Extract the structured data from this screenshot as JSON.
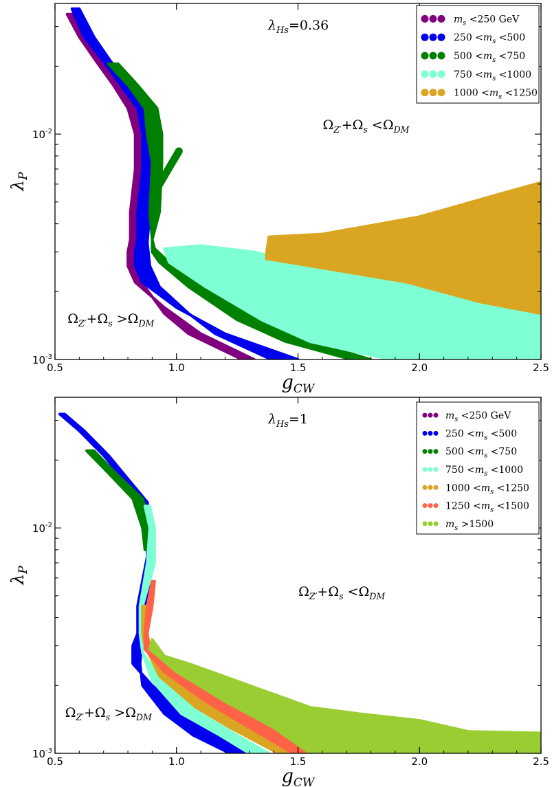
{
  "chart_data": [
    {
      "type": "area",
      "title": "λHs=0.36",
      "xlabel": "gCW",
      "ylabel": "λP",
      "xlim": [
        0.5,
        2.5
      ],
      "ylim": [
        0.001,
        0.038
      ],
      "y_scale": "log",
      "x_ticks": [
        "0.5",
        "1.0",
        "1.5",
        "2.0",
        "2.5"
      ],
      "y_ticks": [
        "10-3",
        "10-2"
      ],
      "legend_position": "top-right",
      "annotations": [
        {
          "text": "ΩZ′+Ωs <ΩDM",
          "x": 1.78,
          "y": 0.0105
        },
        {
          "text": "ΩZ′+Ωs >ΩDM",
          "x": 0.73,
          "y": 0.00145
        }
      ],
      "series": [
        {
          "name": "ms <250 GeV",
          "color": "#800080",
          "points": [
            [
              0.55,
              0.034
            ],
            [
              0.6,
              0.027
            ],
            [
              0.67,
              0.021
            ],
            [
              0.74,
              0.0165
            ],
            [
              0.8,
              0.013
            ],
            [
              0.83,
              0.01
            ],
            [
              0.83,
              0.007
            ],
            [
              0.81,
              0.0045
            ],
            [
              0.81,
              0.0034
            ],
            [
              0.8,
              0.003
            ],
            [
              0.8,
              0.0026
            ],
            [
              0.83,
              0.0022
            ],
            [
              0.95,
              0.0017
            ],
            [
              1.1,
              0.0013
            ],
            [
              1.32,
              0.001
            ],
            [
              1.27,
              0.001
            ],
            [
              1.05,
              0.0013
            ],
            [
              0.95,
              0.0016
            ],
            [
              0.87,
              0.0021
            ],
            [
              0.84,
              0.0026
            ],
            [
              0.84,
              0.0033
            ],
            [
              0.85,
              0.0045
            ],
            [
              0.87,
              0.007
            ],
            [
              0.87,
              0.01
            ],
            [
              0.84,
              0.013
            ],
            [
              0.78,
              0.0165
            ],
            [
              0.7,
              0.021
            ],
            [
              0.63,
              0.027
            ],
            [
              0.58,
              0.034
            ]
          ]
        },
        {
          "name": "250 <ms <500",
          "color": "#0000ee",
          "points": [
            [
              0.57,
              0.036
            ],
            [
              0.62,
              0.027
            ],
            [
              0.7,
              0.021
            ],
            [
              0.77,
              0.0165
            ],
            [
              0.84,
              0.013
            ],
            [
              0.86,
              0.01
            ],
            [
              0.86,
              0.007
            ],
            [
              0.84,
              0.0045
            ],
            [
              0.84,
              0.0034
            ],
            [
              0.83,
              0.003
            ],
            [
              0.83,
              0.0026
            ],
            [
              0.86,
              0.0022
            ],
            [
              1.0,
              0.0017
            ],
            [
              1.2,
              0.0013
            ],
            [
              1.5,
              0.001
            ],
            [
              1.39,
              0.001
            ],
            [
              1.16,
              0.0013
            ],
            [
              1.05,
              0.0016
            ],
            [
              0.93,
              0.0021
            ],
            [
              0.89,
              0.0026
            ],
            [
              0.88,
              0.0033
            ],
            [
              0.89,
              0.0045
            ],
            [
              0.91,
              0.007
            ],
            [
              0.91,
              0.01
            ],
            [
              0.88,
              0.013
            ],
            [
              0.81,
              0.0165
            ],
            [
              0.73,
              0.021
            ],
            [
              0.66,
              0.027
            ],
            [
              0.6,
              0.036
            ]
          ]
        },
        {
          "name": "500 <ms <750",
          "color": "#008000",
          "points": [
            [
              0.72,
              0.0205
            ],
            [
              0.8,
              0.0165
            ],
            [
              0.87,
              0.013
            ],
            [
              0.88,
              0.01
            ],
            [
              0.9,
              0.0075
            ],
            [
              0.89,
              0.0045
            ],
            [
              0.9,
              0.0034
            ],
            [
              0.91,
              0.0031
            ],
            [
              0.97,
              0.0027
            ],
            [
              1.12,
              0.0021
            ],
            [
              1.35,
              0.0015
            ],
            [
              1.55,
              0.0012
            ],
            [
              1.8,
              0.001
            ],
            [
              1.72,
              0.001
            ],
            [
              1.45,
              0.0012
            ],
            [
              1.25,
              0.0015
            ],
            [
              1.05,
              0.0021
            ],
            [
              0.93,
              0.0027
            ],
            [
              0.9,
              0.003
            ],
            [
              0.9,
              0.0034
            ],
            [
              0.93,
              0.0045
            ],
            [
              0.94,
              0.0075
            ],
            [
              0.94,
              0.01
            ],
            [
              0.92,
              0.013
            ],
            [
              0.84,
              0.0165
            ],
            [
              0.76,
              0.0205
            ]
          ]
        },
        {
          "name": "750 <ms <1000",
          "color": "#7fffd4",
          "points": [
            [
              0.95,
              0.0031
            ],
            [
              1.1,
              0.0032
            ],
            [
              1.32,
              0.003
            ],
            [
              1.55,
              0.0026
            ],
            [
              1.95,
              0.0022
            ],
            [
              2.25,
              0.0018
            ],
            [
              2.5,
              0.0016
            ],
            [
              2.5,
              0.001
            ],
            [
              1.88,
              0.001
            ],
            [
              1.55,
              0.0012
            ],
            [
              1.35,
              0.0015
            ],
            [
              1.12,
              0.0021
            ],
            [
              0.97,
              0.0027
            ]
          ]
        },
        {
          "name": "1000 <ms <1250",
          "color": "#daa520",
          "points": [
            [
              1.37,
              0.0029
            ],
            [
              1.38,
              0.0035
            ],
            [
              1.6,
              0.0036
            ],
            [
              2.0,
              0.0043
            ],
            [
              2.35,
              0.0055
            ],
            [
              2.5,
              0.0061
            ],
            [
              2.5,
              0.0016
            ],
            [
              2.25,
              0.0018
            ],
            [
              1.95,
              0.0022
            ],
            [
              1.55,
              0.0026
            ],
            [
              1.37,
              0.0028
            ]
          ]
        }
      ],
      "branch_lines": [
        {
          "color": "#008000",
          "points": [
            [
              1.01,
              0.0084
            ],
            [
              0.96,
              0.0068
            ],
            [
              0.91,
              0.0055
            ]
          ]
        }
      ]
    },
    {
      "type": "area",
      "title": "λHs=1",
      "xlabel": "gCW",
      "ylabel": "λP",
      "xlim": [
        0.5,
        2.5
      ],
      "ylim": [
        0.001,
        0.038
      ],
      "y_scale": "log",
      "x_ticks": [
        "0.5",
        "1.0",
        "1.5",
        "2.0",
        "2.5"
      ],
      "y_ticks": [
        "10-3",
        "10-2"
      ],
      "legend_position": "top-right",
      "annotations": [
        {
          "text": "ΩZ′+Ωs <ΩDM",
          "x": 1.68,
          "y": 0.005
        },
        {
          "text": "ΩZ′+Ωs >ΩDM",
          "x": 0.72,
          "y": 0.00145
        }
      ],
      "series": [
        {
          "name": "ms <250 GeV",
          "color": "#800080",
          "points": []
        },
        {
          "name": "250 <ms <500",
          "color": "#0000ee",
          "points": [
            [
              0.52,
              0.032
            ],
            [
              0.6,
              0.027
            ],
            [
              0.7,
              0.021
            ],
            [
              0.78,
              0.0165
            ],
            [
              0.86,
              0.013
            ],
            [
              0.88,
              0.01
            ],
            [
              0.88,
              0.0075
            ],
            [
              0.84,
              0.0045
            ],
            [
              0.84,
              0.0034
            ],
            [
              0.82,
              0.003
            ],
            [
              0.82,
              0.0025
            ],
            [
              0.9,
              0.002
            ],
            [
              1.05,
              0.0015
            ],
            [
              1.2,
              0.0012
            ],
            [
              1.3,
              0.001
            ],
            [
              1.22,
              0.001
            ],
            [
              1.07,
              0.0012
            ],
            [
              0.95,
              0.0015
            ],
            [
              0.86,
              0.002
            ],
            [
              0.85,
              0.0025
            ],
            [
              0.86,
              0.0034
            ],
            [
              0.88,
              0.0045
            ],
            [
              0.9,
              0.0075
            ],
            [
              0.9,
              0.01
            ],
            [
              0.88,
              0.013
            ],
            [
              0.8,
              0.0165
            ],
            [
              0.72,
              0.021
            ],
            [
              0.62,
              0.027
            ],
            [
              0.54,
              0.032
            ]
          ]
        },
        {
          "name": "500 <ms <750",
          "color": "#008000",
          "points": [
            [
              0.66,
              0.022
            ],
            [
              0.75,
              0.0175
            ],
            [
              0.86,
              0.0135
            ],
            [
              0.9,
              0.01
            ],
            [
              0.9,
              0.008
            ],
            [
              0.87,
              0.008
            ],
            [
              0.86,
              0.01
            ],
            [
              0.82,
              0.0135
            ],
            [
              0.72,
              0.0175
            ],
            [
              0.63,
              0.022
            ]
          ]
        },
        {
          "name": "750 <ms <1000",
          "color": "#7fffd4",
          "points": [
            [
              0.89,
              0.0125
            ],
            [
              0.91,
              0.01
            ],
            [
              0.91,
              0.007
            ],
            [
              0.86,
              0.0045
            ],
            [
              0.86,
              0.0034
            ],
            [
              0.86,
              0.0028
            ],
            [
              0.94,
              0.0021
            ],
            [
              1.1,
              0.0015
            ],
            [
              1.25,
              0.0012
            ],
            [
              1.38,
              0.001
            ],
            [
              1.3,
              0.001
            ],
            [
              1.18,
              0.0012
            ],
            [
              1.02,
              0.0015
            ],
            [
              0.9,
              0.0021
            ],
            [
              0.86,
              0.0028
            ],
            [
              0.85,
              0.0034
            ],
            [
              0.85,
              0.0045
            ],
            [
              0.88,
              0.007
            ],
            [
              0.89,
              0.01
            ],
            [
              0.87,
              0.0125
            ]
          ]
        },
        {
          "name": "1000 <ms <1250",
          "color": "#daa520",
          "points": [
            [
              0.88,
              0.0045
            ],
            [
              0.88,
              0.0034
            ],
            [
              0.88,
              0.003
            ],
            [
              0.97,
              0.0022
            ],
            [
              1.15,
              0.0016
            ],
            [
              1.3,
              0.0013
            ],
            [
              1.5,
              0.001
            ],
            [
              1.42,
              0.001
            ],
            [
              1.22,
              0.0013
            ],
            [
              1.08,
              0.0016
            ],
            [
              0.93,
              0.0022
            ],
            [
              0.87,
              0.003
            ],
            [
              0.86,
              0.0034
            ],
            [
              0.86,
              0.0045
            ]
          ]
        },
        {
          "name": "1250 <ms <1500",
          "color": "#ff6347",
          "points": [
            [
              0.91,
              0.0058
            ],
            [
              0.9,
              0.0045
            ],
            [
              0.88,
              0.0034
            ],
            [
              0.89,
              0.0029
            ],
            [
              1.0,
              0.0023
            ],
            [
              1.2,
              0.0017
            ],
            [
              1.4,
              0.0013
            ],
            [
              1.57,
              0.001
            ],
            [
              1.48,
              0.001
            ],
            [
              1.3,
              0.0013
            ],
            [
              1.12,
              0.0017
            ],
            [
              0.95,
              0.0023
            ],
            [
              0.87,
              0.0029
            ],
            [
              0.87,
              0.0034
            ],
            [
              0.88,
              0.0045
            ],
            [
              0.9,
              0.0058
            ]
          ]
        },
        {
          "name": "ms >1500",
          "color": "#9acd32",
          "points": [
            [
              0.9,
              0.0032
            ],
            [
              0.95,
              0.0027
            ],
            [
              1.05,
              0.0025
            ],
            [
              1.3,
              0.002
            ],
            [
              1.55,
              0.0016
            ],
            [
              1.75,
              0.0015
            ],
            [
              2.0,
              0.0014
            ],
            [
              2.2,
              0.00125
            ],
            [
              2.5,
              0.00123
            ],
            [
              2.5,
              0.001
            ],
            [
              1.55,
              0.001
            ],
            [
              1.4,
              0.0013
            ],
            [
              1.2,
              0.0017
            ],
            [
              1.0,
              0.0023
            ],
            [
              0.89,
              0.0029
            ]
          ]
        }
      ]
    }
  ]
}
